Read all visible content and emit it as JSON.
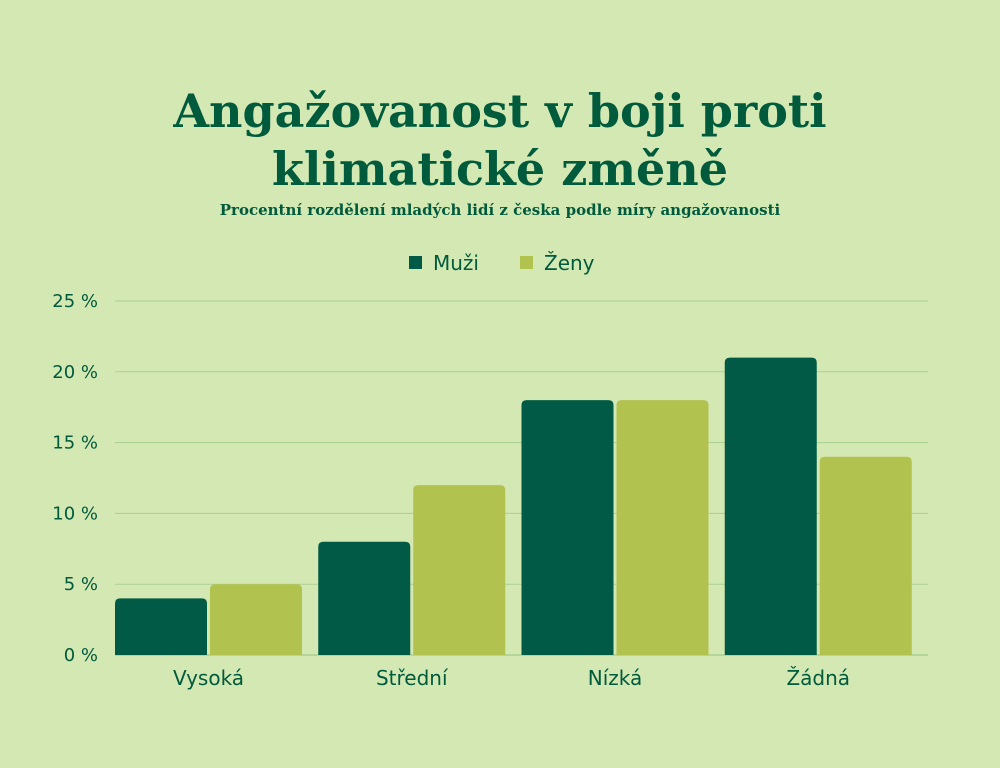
{
  "title_line1": "Angažovanost v boji proti",
  "title_line2": "klimatické změně",
  "subtitle": "Procentní rozdělení mladých lidí z česka podle míry angažovanosti",
  "colors": {
    "background": "#d4e8b4",
    "text": "#005a3c",
    "grid": "#a9cf8f",
    "series": [
      "#005a45",
      "#b2c24f"
    ]
  },
  "chart_data": {
    "type": "bar",
    "title": "Angažovanost v boji proti klimatické změně",
    "subtitle": "Procentní rozdělení mladých lidí z česka podle míry angažovanosti",
    "categories": [
      "Vysoká",
      "Střední",
      "Nízká",
      "Žádná"
    ],
    "series": [
      {
        "name": "Muži",
        "values": [
          4,
          8,
          18,
          21
        ]
      },
      {
        "name": "Ženy",
        "values": [
          5,
          12,
          18,
          14
        ]
      }
    ],
    "yticks": [
      "0 %",
      "5 %",
      "10 %",
      "15 %",
      "20 %",
      "25 %"
    ],
    "ytick_values": [
      0,
      5,
      10,
      15,
      20,
      25
    ],
    "ylim": [
      0,
      25
    ],
    "xlabel": "",
    "ylabel": "",
    "grid": true,
    "legend_position": "top-center"
  }
}
